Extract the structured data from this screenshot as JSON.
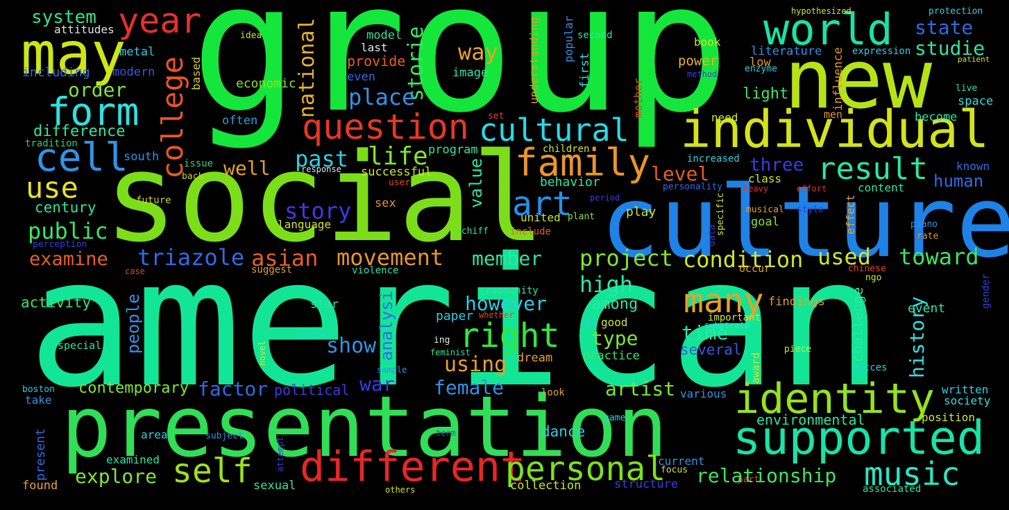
{
  "colors": {
    "background": "#000000"
  },
  "words": [
    {
      "text": "american",
      "color": "#13E597"
    },
    {
      "text": "group",
      "color": "#15E63B"
    },
    {
      "text": "social",
      "color": "#7CDE19"
    },
    {
      "text": "culture",
      "color": "#1E82E6"
    },
    {
      "text": "presentation",
      "color": "#31DE57"
    },
    {
      "text": "new",
      "color": "#B7E316"
    },
    {
      "text": "individual",
      "color": "#D4E31A"
    },
    {
      "text": "may",
      "color": "#CFE616"
    },
    {
      "text": "world",
      "color": "#19E3A6"
    },
    {
      "text": "supported",
      "color": "#19E3A6"
    },
    {
      "text": "identity",
      "color": "#96E21C"
    },
    {
      "text": "different",
      "color": "#E82626"
    },
    {
      "text": "question",
      "color": "#E83726"
    },
    {
      "text": "family",
      "color": "#E8962C"
    },
    {
      "text": "cultural",
      "color": "#25DCE8"
    },
    {
      "text": "personal",
      "color": "#7CE21A"
    },
    {
      "text": "self",
      "color": "#9EE31A"
    },
    {
      "text": "music",
      "color": "#2BE6C3"
    },
    {
      "text": "form",
      "color": "#2EE2E2"
    },
    {
      "text": "cell",
      "color": "#2F94E8"
    },
    {
      "text": "college",
      "color": "#E85526"
    },
    {
      "text": "year",
      "color": "#E82F2F"
    },
    {
      "text": "result",
      "color": "#2BE6A4"
    },
    {
      "text": "right",
      "color": "#35E63B"
    },
    {
      "text": "many",
      "color": "#E8A226"
    },
    {
      "text": "art",
      "color": "#2691E8"
    },
    {
      "text": "use",
      "color": "#E8E226"
    },
    {
      "text": "system",
      "color": "#2BE68A"
    },
    {
      "text": "attitudes",
      "color": "#E3E3E3"
    },
    {
      "text": "including",
      "color": "#2F6BE8"
    },
    {
      "text": "modern",
      "color": "#3B57E3"
    },
    {
      "text": "metal",
      "color": "#2AD0E3"
    },
    {
      "text": "order",
      "color": "#83E62B"
    },
    {
      "text": "difference",
      "color": "#30E6A3"
    },
    {
      "text": "tradition",
      "color": "#28D270"
    },
    {
      "text": "south",
      "color": "#2696E8"
    },
    {
      "text": "issue",
      "color": "#2BCF84"
    },
    {
      "text": "back",
      "color": "#CFCF2B"
    },
    {
      "text": "based",
      "color": "#D8CE2E"
    },
    {
      "text": "often",
      "color": "#2A9EDC"
    },
    {
      "text": "economic",
      "color": "#83E62B"
    },
    {
      "text": "national",
      "color": "#E8B426"
    },
    {
      "text": "storie",
      "color": "#3BE663"
    },
    {
      "text": "place",
      "color": "#2F94E8"
    },
    {
      "text": "provide",
      "color": "#E85E26"
    },
    {
      "text": "model",
      "color": "#2EE2A4"
    },
    {
      "text": "last",
      "color": "#E8E8E8"
    },
    {
      "text": "even",
      "color": "#2F6BE8"
    },
    {
      "text": "image",
      "color": "#2BE6A4"
    },
    {
      "text": "way",
      "color": "#E8A226"
    },
    {
      "text": "idea",
      "color": "#CFE22B"
    },
    {
      "text": "understanding",
      "color": "#E8962C"
    },
    {
      "text": "popular",
      "color": "#2F94E8"
    },
    {
      "text": "first",
      "color": "#2EE2E2"
    },
    {
      "text": "second",
      "color": "#2BE6A4"
    },
    {
      "text": "mother",
      "color": "#E84426"
    },
    {
      "text": "book",
      "color": "#CFE62B"
    },
    {
      "text": "power",
      "color": "#E8B426"
    },
    {
      "text": "method",
      "color": "#3B3BE6"
    },
    {
      "text": "literature",
      "color": "#2F94E8"
    },
    {
      "text": "low",
      "color": "#E8962C"
    },
    {
      "text": "enzyme",
      "color": "#2AD0E3"
    },
    {
      "text": "influence",
      "color": "#E8962C"
    },
    {
      "text": "hypothesized",
      "color": "#CFE62B"
    },
    {
      "text": "protection",
      "color": "#2AD0E3"
    },
    {
      "text": "state",
      "color": "#2F6BE8"
    },
    {
      "text": "studie",
      "color": "#2BE6A4"
    },
    {
      "text": "expression",
      "color": "#2AD0E3"
    },
    {
      "text": "patient",
      "color": "#CFE62B"
    },
    {
      "text": "light",
      "color": "#3BE663"
    },
    {
      "text": "live",
      "color": "#2BE6A4"
    },
    {
      "text": "space",
      "color": "#2EE2E2"
    },
    {
      "text": "need",
      "color": "#CFE62B"
    },
    {
      "text": "men",
      "color": "#E8962C"
    },
    {
      "text": "become",
      "color": "#2BE6A4"
    },
    {
      "text": "increased",
      "color": "#2AD0E3"
    },
    {
      "text": "three",
      "color": "#3B3BE6"
    },
    {
      "text": "level",
      "color": "#E85E26"
    },
    {
      "text": "known",
      "color": "#2F6BE8"
    },
    {
      "text": "human",
      "color": "#2F6BE8"
    },
    {
      "text": "class",
      "color": "#CFE62B"
    },
    {
      "text": "heavy",
      "color": "#E82F2F"
    },
    {
      "text": "effort",
      "color": "#E82F2F"
    },
    {
      "text": "content",
      "color": "#2BE6A4"
    },
    {
      "text": "personality",
      "color": "#2F6BE8"
    },
    {
      "text": "specific",
      "color": "#CFE62B"
    },
    {
      "text": "data",
      "color": "#3B3BE6"
    },
    {
      "text": "musical",
      "color": "#E8A226"
    },
    {
      "text": "style",
      "color": "#3B3BE6"
    },
    {
      "text": "effect",
      "color": "#E8A226"
    },
    {
      "text": "piano",
      "color": "#2F94E8"
    },
    {
      "text": "rate",
      "color": "#E8962C"
    },
    {
      "text": "goal",
      "color": "#83E62B"
    },
    {
      "text": "toward",
      "color": "#3BE663"
    },
    {
      "text": "used",
      "color": "#CFE62B"
    },
    {
      "text": "condition",
      "color": "#CFE62B"
    },
    {
      "text": "project",
      "color": "#83E62B"
    },
    {
      "text": "occur",
      "color": "#E8A226"
    },
    {
      "text": "chinese",
      "color": "#E84426"
    },
    {
      "text": "ngo",
      "color": "#CFE62B"
    },
    {
      "text": "gender",
      "color": "#3B3BE6"
    },
    {
      "text": "event",
      "color": "#2BE6A4"
    },
    {
      "text": "findings",
      "color": "#E8A226"
    },
    {
      "text": "challenge",
      "color": "#2BE6A4"
    },
    {
      "text": "important",
      "color": "#CFE62B"
    },
    {
      "text": "substrate",
      "color": "#2EE2E2"
    },
    {
      "text": "piece",
      "color": "#CFE62B"
    },
    {
      "text": "succes",
      "color": "#2AD0E3"
    },
    {
      "text": "history",
      "color": "#2EE2E2"
    },
    {
      "text": "written",
      "color": "#2AD0E3"
    },
    {
      "text": "society",
      "color": "#2EE2E2"
    },
    {
      "text": "position",
      "color": "#CFE62B"
    },
    {
      "text": "associated",
      "color": "#2BE6A4"
    },
    {
      "text": "award",
      "color": "#CFE62B"
    },
    {
      "text": "part",
      "color": "#E84426"
    },
    {
      "text": "focus",
      "color": "#CFE62B"
    },
    {
      "text": "current",
      "color": "#2F94E8"
    },
    {
      "text": "structure",
      "color": "#3B3BE6"
    },
    {
      "text": "relationship",
      "color": "#3BE663"
    },
    {
      "text": "environmental",
      "color": "#2BE6A4"
    },
    {
      "text": "various",
      "color": "#2F94E8"
    },
    {
      "text": "look",
      "color": "#E8A226"
    },
    {
      "text": "game",
      "color": "#2AD0E3"
    },
    {
      "text": "collection",
      "color": "#CFE62B"
    },
    {
      "text": "dance",
      "color": "#2AD0E3"
    },
    {
      "text": "term",
      "color": "#3B57E3"
    },
    {
      "text": "artist",
      "color": "#83E62B"
    },
    {
      "text": "female",
      "color": "#2F94E8"
    },
    {
      "text": "war",
      "color": "#3B3BE6"
    },
    {
      "text": "political",
      "color": "#3B3BE6"
    },
    {
      "text": "factor",
      "color": "#2F6BE8"
    },
    {
      "text": "contemporary",
      "color": "#83E62B"
    },
    {
      "text": "take",
      "color": "#2F94E8"
    },
    {
      "text": "boston",
      "color": "#2AD0E3"
    },
    {
      "text": "present",
      "color": "#2F6BE8"
    },
    {
      "text": "examined",
      "color": "#2BE6A4"
    },
    {
      "text": "found",
      "color": "#E8A226"
    },
    {
      "text": "sexual",
      "color": "#2BE6A4"
    },
    {
      "text": "others",
      "color": "#CFE62B"
    },
    {
      "text": "explore",
      "color": "#83E62B"
    },
    {
      "text": "area",
      "color": "#2AD0E3"
    },
    {
      "text": "subject",
      "color": "#2F94E8"
    },
    {
      "text": "attempt",
      "color": "#3B3BE6"
    },
    {
      "text": "special",
      "color": "#2BE6A4"
    },
    {
      "text": "novel",
      "color": "#CFE62B"
    },
    {
      "text": "activity",
      "color": "#3BE663"
    },
    {
      "text": "people",
      "color": "#2F94E8"
    },
    {
      "text": "show",
      "color": "#2F94E8"
    },
    {
      "text": "analysi",
      "color": "#2F6BE8"
    },
    {
      "text": "context",
      "color": "#2AD0E3"
    },
    {
      "text": "sample",
      "color": "#2F94E8"
    },
    {
      "text": "feminist",
      "color": "#2BE6A4"
    },
    {
      "text": "ing",
      "color": "#E8E8E8"
    },
    {
      "text": "using",
      "color": "#E8A226"
    },
    {
      "text": "dream",
      "color": "#E8A226"
    },
    {
      "text": "practice",
      "color": "#3BE663"
    },
    {
      "text": "star",
      "color": "#2BE6A4"
    },
    {
      "text": "community",
      "color": "#2BE6A4"
    },
    {
      "text": "violence",
      "color": "#2BE6A4"
    },
    {
      "text": "suggest",
      "color": "#E8A226"
    },
    {
      "text": "case",
      "color": "#E84426"
    },
    {
      "text": "examine",
      "color": "#E85E26"
    },
    {
      "text": "triazole",
      "color": "#2F6BE8"
    },
    {
      "text": "asian",
      "color": "#E85E26"
    },
    {
      "text": "movement",
      "color": "#E8962C"
    },
    {
      "text": "member",
      "color": "#2BE6A4"
    },
    {
      "text": "high",
      "color": "#2BE6A4"
    },
    {
      "text": "among",
      "color": "#2BE6A4"
    },
    {
      "text": "however",
      "color": "#2AD0E3"
    },
    {
      "text": "paper",
      "color": "#2AD0E3"
    },
    {
      "text": "whether",
      "color": "#E84426"
    },
    {
      "text": "us",
      "color": "#2AD0E3"
    },
    {
      "text": "good",
      "color": "#CFE62B"
    },
    {
      "text": "type",
      "color": "#83E62B"
    },
    {
      "text": "time",
      "color": "#2BE6A4"
    },
    {
      "text": "several",
      "color": "#3B57E3"
    },
    {
      "text": "perception",
      "color": "#3B3BE6"
    },
    {
      "text": "public",
      "color": "#3BE663"
    },
    {
      "text": "century",
      "color": "#2BE6A4"
    },
    {
      "text": "future",
      "color": "#CFCF2B"
    },
    {
      "text": "story",
      "color": "#3B3BE6"
    },
    {
      "text": "language",
      "color": "#CFE62B"
    },
    {
      "text": "sex",
      "color": "#E8962C"
    },
    {
      "text": "united",
      "color": "#CFE62B"
    },
    {
      "text": "include",
      "color": "#E85E26"
    },
    {
      "text": "schiff",
      "color": "#2BE6A4"
    },
    {
      "text": "plant",
      "color": "#83E62B"
    },
    {
      "text": "play",
      "color": "#CFE62B"
    },
    {
      "text": "period",
      "color": "#3B3BE6"
    },
    {
      "text": "value",
      "color": "#2BE6A4"
    },
    {
      "text": "behavior",
      "color": "#2BE6A4"
    },
    {
      "text": "user",
      "color": "#E84426"
    },
    {
      "text": "successful",
      "color": "#CFE62B"
    },
    {
      "text": "response",
      "color": "#E8E8E8"
    },
    {
      "text": "program",
      "color": "#2BE6A4"
    },
    {
      "text": "children",
      "color": "#CFE62B"
    },
    {
      "text": "set",
      "color": "#E84426"
    },
    {
      "text": "well",
      "color": "#E8A226"
    },
    {
      "text": "past",
      "color": "#2AD0E3"
    },
    {
      "text": "life",
      "color": "#83E62B"
    }
  ]
}
